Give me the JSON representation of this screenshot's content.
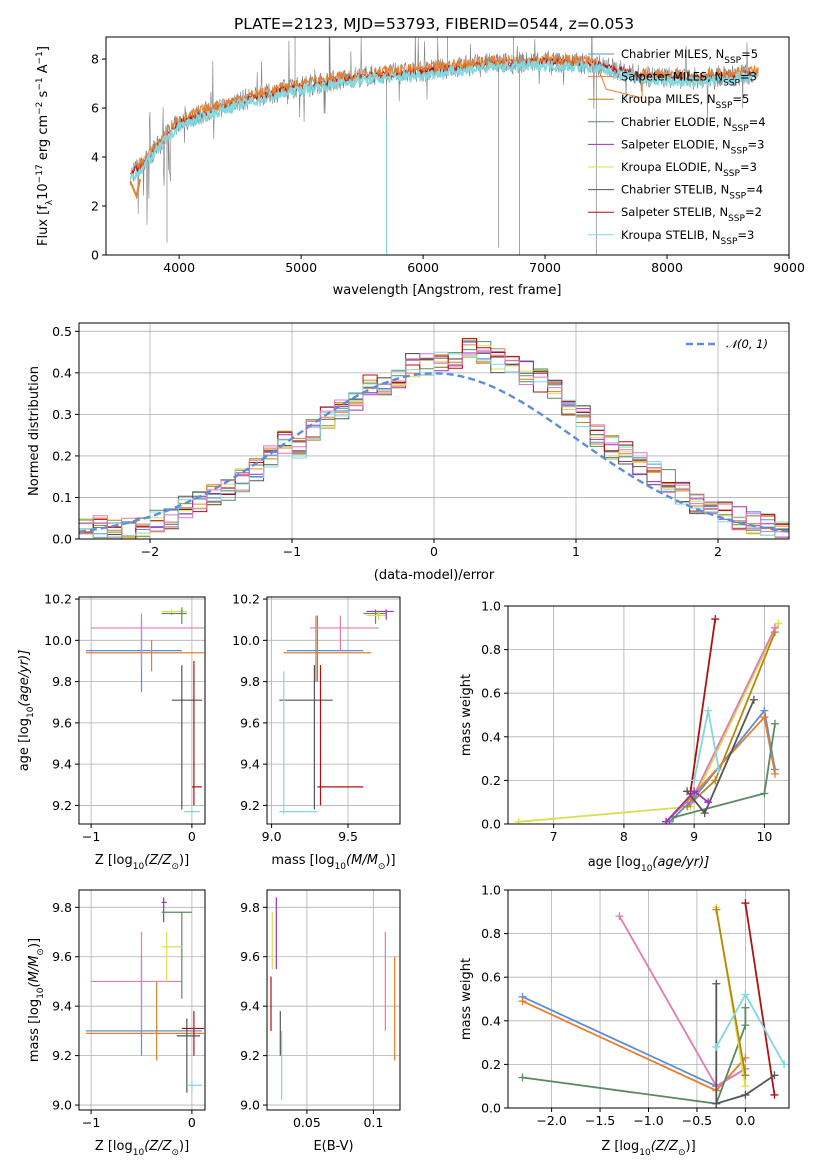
{
  "title": "PLATE=2123, MJD=53793, FIBERID=0544, z=0.053",
  "colors": {
    "Chabrier MILES": "#5b8fd6",
    "Salpeter MILES": "#e67e2e",
    "Kroupa MILES": "#b8860b",
    "Chabrier ELODIE": "#5a8a60",
    "Salpeter ELODIE": "#9b30c0",
    "Kroupa ELODIE": "#d8e050",
    "Chabrier STELIB": "#555555",
    "Salpeter STELIB": "#b01010",
    "Kroupa STELIB": "#80d8e0",
    "pink": "#e07ab8",
    "data": "#808080"
  },
  "chart_data": [
    {
      "type": "line",
      "panel": "spectrum",
      "title": "PLATE=2123, MJD=53793, FIBERID=0544, z=0.053",
      "xlabel": "wavelength [Angstrom, rest frame]",
      "ylabel_parts": [
        "Flux [f",
        "λ",
        "10",
        "−17",
        " erg cm",
        "−2",
        " s",
        "−1",
        " A",
        "−1",
        "]"
      ],
      "xlim": [
        3400,
        9000
      ],
      "ylim": [
        0,
        8.9
      ],
      "xticks": [
        4000,
        5000,
        6000,
        7000,
        8000,
        9000
      ],
      "yticks": [
        0,
        2,
        4,
        6,
        8
      ],
      "legend_position": "right",
      "legend": [
        {
          "name": "Chabrier MILES, N",
          "sub": "SSP",
          "tail": "=5"
        },
        {
          "name": "Salpeter MILES, N",
          "sub": "SSP",
          "tail": "=3"
        },
        {
          "name": "Kroupa MILES, N",
          "sub": "SSP",
          "tail": "=5"
        },
        {
          "name": "Chabrier ELODIE, N",
          "sub": "SSP",
          "tail": "=4"
        },
        {
          "name": "Salpeter ELODIE, N",
          "sub": "SSP",
          "tail": "=3"
        },
        {
          "name": "Kroupa ELODIE, N",
          "sub": "SSP",
          "tail": "=3"
        },
        {
          "name": "Chabrier STELIB, N",
          "sub": "SSP",
          "tail": "=4"
        },
        {
          "name": "Salpeter STELIB, N",
          "sub": "SSP",
          "tail": "=2"
        },
        {
          "name": "Kroupa STELIB, N",
          "sub": "SSP",
          "tail": "=3"
        }
      ],
      "continuum": {
        "x": [
          3600,
          3700,
          3800,
          3900,
          4000,
          4200,
          4500,
          5000,
          5500,
          6000,
          6500,
          7000,
          7400,
          7800,
          8200,
          8700
        ],
        "y": [
          3.3,
          3.7,
          4.3,
          4.9,
          5.4,
          5.8,
          6.3,
          6.9,
          7.3,
          7.5,
          7.8,
          7.9,
          7.8,
          7.3,
          7.2,
          7.4
        ]
      }
    },
    {
      "type": "line",
      "panel": "residuals",
      "xlabel": "(data-model)/error",
      "ylabel": "Normed distribution",
      "xlim": [
        -2.5,
        2.5
      ],
      "ylim": [
        0,
        0.52
      ],
      "xticks": [
        -2,
        -1,
        0,
        1,
        2
      ],
      "yticks": [
        0.0,
        0.1,
        0.2,
        0.3,
        0.4,
        0.5
      ],
      "legend": "𝒩(0, 1)",
      "legend_position": "top-right",
      "grid": true,
      "hist_mean": {
        "x": [
          -2.5,
          -2.4,
          -2.3,
          -2.2,
          -2.1,
          -2.0,
          -1.9,
          -1.8,
          -1.7,
          -1.6,
          -1.5,
          -1.4,
          -1.3,
          -1.2,
          -1.1,
          -1.0,
          -0.9,
          -0.8,
          -0.7,
          -0.6,
          -0.5,
          -0.4,
          -0.3,
          -0.2,
          -0.1,
          0.0,
          0.1,
          0.2,
          0.3,
          0.4,
          0.5,
          0.6,
          0.7,
          0.8,
          0.9,
          1.0,
          1.1,
          1.2,
          1.3,
          1.4,
          1.5,
          1.6,
          1.7,
          1.8,
          1.9,
          2.0,
          2.1,
          2.2,
          2.3,
          2.4
        ],
        "y": [
          0.025,
          0.028,
          0.025,
          0.02,
          0.025,
          0.04,
          0.05,
          0.075,
          0.085,
          0.11,
          0.12,
          0.14,
          0.17,
          0.2,
          0.23,
          0.22,
          0.26,
          0.29,
          0.31,
          0.34,
          0.37,
          0.36,
          0.39,
          0.42,
          0.42,
          0.42,
          0.44,
          0.46,
          0.45,
          0.43,
          0.42,
          0.4,
          0.38,
          0.36,
          0.32,
          0.3,
          0.25,
          0.22,
          0.21,
          0.18,
          0.16,
          0.14,
          0.11,
          0.09,
          0.075,
          0.065,
          0.05,
          0.04,
          0.035,
          0.025
        ]
      },
      "normal": {
        "mu": 0,
        "sigma": 1
      }
    },
    {
      "type": "scatter",
      "panel": "age-vs-Z",
      "xlabel_parts": [
        "Z [log",
        "10",
        "(Z/Z",
        "⊙",
        ")]"
      ],
      "ylabel_parts": [
        "age  [log",
        "10",
        "(age/yr)]"
      ],
      "xlim": [
        -1.12,
        0.13
      ],
      "ylim": [
        9.11,
        10.21
      ],
      "xticks": [
        -1,
        0
      ],
      "yticks": [
        9.2,
        9.4,
        9.6,
        9.8,
        10.0,
        10.2
      ],
      "grid": true,
      "points": [
        {
          "c": "Chabrier MILES",
          "x": -0.5,
          "y": 9.95,
          "xe": [
            -1.05,
            -0.1
          ],
          "ye": [
            9.75,
            10.1
          ]
        },
        {
          "c": "Salpeter MILES",
          "x": -0.4,
          "y": 9.94,
          "xe": [
            -1.05,
            0.12
          ],
          "ye": [
            9.85,
            10.0
          ]
        },
        {
          "c": "pink",
          "x": -0.5,
          "y": 10.06,
          "xe": [
            -1.0,
            0.12
          ],
          "ye": [
            9.87,
            10.13
          ]
        },
        {
          "c": "Kroupa ELODIE",
          "x": -0.2,
          "y": 10.14,
          "xe": [
            -0.3,
            -0.05
          ],
          "ye": [
            10.12,
            10.15
          ]
        },
        {
          "c": "Chabrier ELODIE",
          "x": -0.1,
          "y": 10.13,
          "xe": [
            -0.3,
            -0.05
          ],
          "ye": [
            10.08,
            10.16
          ]
        },
        {
          "c": "Chabrier STELIB",
          "x": -0.1,
          "y": 9.71,
          "xe": [
            -0.2,
            0.1
          ],
          "ye": [
            9.18,
            9.88
          ]
        },
        {
          "c": "Salpeter STELIB",
          "x": 0.02,
          "y": 9.29,
          "xe": [
            0.0,
            0.1
          ],
          "ye": [
            9.2,
            9.9
          ]
        },
        {
          "c": "Kroupa STELIB",
          "x": 0.0,
          "y": 9.17,
          "xe": [
            -0.08,
            0.08
          ],
          "ye": [
            9.16,
            9.18
          ]
        }
      ]
    },
    {
      "type": "scatter",
      "panel": "age-vs-mass",
      "xlabel_parts": [
        "mass [log",
        "10",
        "(M/M",
        "⊙",
        ")]"
      ],
      "xlim": [
        8.97,
        9.84
      ],
      "ylim": [
        9.11,
        10.21
      ],
      "xticks": [
        9.0,
        9.5
      ],
      "yticks": [
        9.2,
        9.4,
        9.6,
        9.8,
        10.0,
        10.2
      ],
      "grid": true,
      "points": [
        {
          "c": "Chabrier MILES",
          "x": 9.3,
          "y": 9.95,
          "xe": [
            9.1,
            9.6
          ],
          "ye": [
            9.8,
            10.12
          ]
        },
        {
          "c": "Salpeter MILES",
          "x": 9.29,
          "y": 9.94,
          "xe": [
            9.08,
            9.65
          ],
          "ye": [
            9.8,
            10.12
          ]
        },
        {
          "c": "pink",
          "x": 9.45,
          "y": 10.06,
          "xe": [
            9.25,
            9.7
          ],
          "ye": [
            9.95,
            10.12
          ]
        },
        {
          "c": "Chabrier ELODIE",
          "x": 9.68,
          "y": 10.13,
          "xe": [
            9.6,
            9.75
          ],
          "ye": [
            10.08,
            10.15
          ]
        },
        {
          "c": "Kroupa ELODIE",
          "x": 9.7,
          "y": 10.12,
          "xe": [
            9.62,
            9.75
          ],
          "ye": [
            10.1,
            10.14
          ]
        },
        {
          "c": "Salpeter ELODIE",
          "x": 9.75,
          "y": 10.14,
          "xe": [
            9.62,
            9.8
          ],
          "ye": [
            10.1,
            10.15
          ]
        },
        {
          "c": "Chabrier STELIB",
          "x": 9.28,
          "y": 9.71,
          "xe": [
            9.05,
            9.4
          ],
          "ye": [
            9.18,
            9.88
          ]
        },
        {
          "c": "Salpeter STELIB",
          "x": 9.32,
          "y": 9.29,
          "xe": [
            9.3,
            9.6
          ],
          "ye": [
            9.2,
            9.88
          ]
        },
        {
          "c": "Kroupa STELIB",
          "x": 9.08,
          "y": 9.17,
          "xe": [
            9.05,
            9.3
          ],
          "ye": [
            9.16,
            9.85
          ]
        }
      ]
    },
    {
      "type": "line",
      "panel": "weight-vs-age",
      "xlabel_parts": [
        "age  [log",
        "10",
        "(age/yr)]"
      ],
      "ylabel": "mass weight",
      "xlim": [
        6.35,
        10.35
      ],
      "ylim": [
        0,
        1.0
      ],
      "xticks": [
        7,
        8,
        9,
        10
      ],
      "yticks": [
        0.0,
        0.2,
        0.4,
        0.6,
        0.8,
        1.0
      ],
      "grid": true,
      "series": [
        {
          "c": "Kroupa ELODIE",
          "x": [
            6.5,
            8.95,
            10.2
          ],
          "y": [
            0.01,
            0.08,
            0.92
          ]
        },
        {
          "c": "Kroupa MILES",
          "x": [
            8.9,
            9.3,
            10.15
          ],
          "y": [
            0.08,
            0.2,
            0.88
          ]
        },
        {
          "c": "pink",
          "x": [
            8.95,
            10.15
          ],
          "y": [
            0.1,
            0.9
          ]
        },
        {
          "c": "Salpeter STELIB",
          "x": [
            8.95,
            9.3
          ],
          "y": [
            0.15,
            0.94
          ]
        },
        {
          "c": "Chabrier MILES",
          "x": [
            8.65,
            9.0,
            10.0,
            10.15
          ],
          "y": [
            0.01,
            0.12,
            0.52,
            0.25
          ]
        },
        {
          "c": "Salpeter MILES",
          "x": [
            8.6,
            8.95,
            10.0,
            10.15
          ],
          "y": [
            0.01,
            0.12,
            0.49,
            0.23
          ]
        },
        {
          "c": "Chabrier ELODIE",
          "x": [
            8.7,
            10.0,
            10.15
          ],
          "y": [
            0.03,
            0.14,
            0.46
          ]
        },
        {
          "c": "Chabrier STELIB",
          "x": [
            8.9,
            9.15,
            9.85
          ],
          "y": [
            0.15,
            0.05,
            0.57
          ]
        },
        {
          "c": "Kroupa STELIB",
          "x": [
            9.0,
            9.2,
            9.35
          ],
          "y": [
            0.2,
            0.52,
            0.25
          ]
        },
        {
          "c": "Salpeter ELODIE",
          "x": [
            8.6,
            9.0,
            9.2
          ],
          "y": [
            0.01,
            0.15,
            0.1
          ]
        }
      ]
    },
    {
      "type": "scatter",
      "panel": "mass-vs-Z",
      "xlabel_parts": [
        "Z [log",
        "10",
        "(Z/Z",
        "⊙",
        ")]"
      ],
      "ylabel_parts": [
        "mass [log",
        "10",
        "(M/M",
        "⊙",
        ")]"
      ],
      "xlim": [
        -1.12,
        0.13
      ],
      "ylim": [
        8.98,
        9.87
      ],
      "xticks": [
        -1,
        0
      ],
      "yticks": [
        9.0,
        9.2,
        9.4,
        9.6,
        9.8
      ],
      "grid": true,
      "points": [
        {
          "c": "Chabrier MILES",
          "x": -0.5,
          "y": 9.3,
          "xe": [
            -1.05,
            0.1
          ],
          "ye": [
            9.2,
            9.6
          ]
        },
        {
          "c": "Salpeter MILES",
          "x": -0.35,
          "y": 9.29,
          "xe": [
            -1.05,
            0.12
          ],
          "ye": [
            9.18,
            9.5
          ]
        },
        {
          "c": "pink",
          "x": -0.5,
          "y": 9.5,
          "xe": [
            -1.0,
            -0.1
          ],
          "ye": [
            9.3,
            9.7
          ]
        },
        {
          "c": "Salpeter ELODIE",
          "x": -0.28,
          "y": 9.82,
          "xe": [
            -0.3,
            -0.25
          ],
          "ye": [
            9.74,
            9.84
          ]
        },
        {
          "c": "Chabrier ELODIE",
          "x": -0.1,
          "y": 9.78,
          "xe": [
            -0.3,
            0.0
          ],
          "ye": [
            9.43,
            9.78
          ]
        },
        {
          "c": "Kroupa ELODIE",
          "x": -0.25,
          "y": 9.64,
          "xe": [
            -0.3,
            -0.1
          ],
          "ye": [
            9.5,
            9.7
          ]
        },
        {
          "c": "Chabrier STELIB",
          "x": -0.05,
          "y": 9.28,
          "xe": [
            -0.15,
            0.08
          ],
          "ye": [
            9.05,
            9.35
          ]
        },
        {
          "c": "Salpeter STELIB",
          "x": 0.02,
          "y": 9.31,
          "xe": [
            -0.1,
            0.12
          ],
          "ye": [
            9.2,
            9.38
          ]
        },
        {
          "c": "Kroupa STELIB",
          "x": 0.0,
          "y": 9.08,
          "xe": [
            -0.05,
            0.1
          ],
          "ye": [
            9.05,
            9.1
          ]
        }
      ]
    },
    {
      "type": "scatter",
      "panel": "mass-vs-EBV",
      "xlabel": "E(B-V)",
      "xlim": [
        0.02,
        0.12
      ],
      "ylim": [
        8.98,
        9.87
      ],
      "xticks": [
        0.05,
        0.1
      ],
      "yticks": [
        9.0,
        9.2,
        9.4,
        9.6,
        9.8
      ],
      "grid": true,
      "points": [
        {
          "c": "Salpeter ELODIE",
          "x": 0.027,
          "y": 9.7,
          "xe": [
            0.027,
            0.027
          ],
          "ye": [
            9.55,
            9.84
          ]
        },
        {
          "c": "Kroupa ELODIE",
          "x": 0.024,
          "y": 9.7,
          "xe": [
            0.024,
            0.024
          ],
          "ye": [
            9.55,
            9.78
          ]
        },
        {
          "c": "Salpeter STELIB",
          "x": 0.023,
          "y": 9.4,
          "xe": [
            0.023,
            0.023
          ],
          "ye": [
            9.3,
            9.52
          ]
        },
        {
          "c": "Chabrier STELIB",
          "x": 0.03,
          "y": 9.3,
          "xe": [
            0.03,
            0.03
          ],
          "ye": [
            9.2,
            9.38
          ]
        },
        {
          "c": "Kroupa STELIB",
          "x": 0.031,
          "y": 9.15,
          "xe": [
            0.031,
            0.031
          ],
          "ye": [
            9.02,
            9.3
          ]
        },
        {
          "c": "pink",
          "x": 0.109,
          "y": 9.5,
          "xe": [
            0.109,
            0.109
          ],
          "ye": [
            9.3,
            9.7
          ]
        },
        {
          "c": "Salpeter MILES",
          "x": 0.116,
          "y": 9.4,
          "xe": [
            0.116,
            0.116
          ],
          "ye": [
            9.18,
            9.6
          ]
        }
      ]
    },
    {
      "type": "line",
      "panel": "weight-vs-Z",
      "xlabel_parts": [
        "Z [log",
        "10",
        "(Z/Z",
        "⊙",
        ")]"
      ],
      "ylabel": "mass weight",
      "xlim": [
        -2.45,
        0.45
      ],
      "ylim": [
        0,
        1.0
      ],
      "xticks": [
        -2.0,
        -1.5,
        -1.0,
        -0.5,
        0.0
      ],
      "yticks": [
        0.0,
        0.2,
        0.4,
        0.6,
        0.8,
        1.0
      ],
      "grid": true,
      "series": [
        {
          "c": "Chabrier MILES",
          "x": [
            -2.3,
            -0.3,
            0.0
          ],
          "y": [
            0.51,
            0.1,
            0.18
          ]
        },
        {
          "c": "Salpeter MILES",
          "x": [
            -2.3,
            -0.3,
            0.0
          ],
          "y": [
            0.49,
            0.08,
            0.23
          ]
        },
        {
          "c": "pink",
          "x": [
            -1.3,
            -0.3,
            0.0
          ],
          "y": [
            0.88,
            0.1,
            0.18
          ]
        },
        {
          "c": "Chabrier ELODIE",
          "x": [
            -2.3,
            -0.3,
            0.0,
            0.0
          ],
          "y": [
            0.14,
            0.02,
            0.38,
            0.46
          ]
        },
        {
          "c": "Kroupa ELODIE",
          "x": [
            -0.3,
            0.0
          ],
          "y": [
            0.92,
            0.1
          ]
        },
        {
          "c": "Kroupa MILES",
          "x": [
            -0.3,
            0.0
          ],
          "y": [
            0.91,
            0.15
          ]
        },
        {
          "c": "Salpeter STELIB",
          "x": [
            0.0,
            0.3
          ],
          "y": [
            0.94,
            0.06
          ]
        },
        {
          "c": "Chabrier STELIB",
          "x": [
            -0.3,
            -0.3,
            0.0,
            0.3
          ],
          "y": [
            0.57,
            0.02,
            0.06,
            0.15
          ]
        },
        {
          "c": "Kroupa STELIB",
          "x": [
            -0.3,
            0.0,
            0.4
          ],
          "y": [
            0.28,
            0.52,
            0.2
          ]
        }
      ]
    }
  ]
}
